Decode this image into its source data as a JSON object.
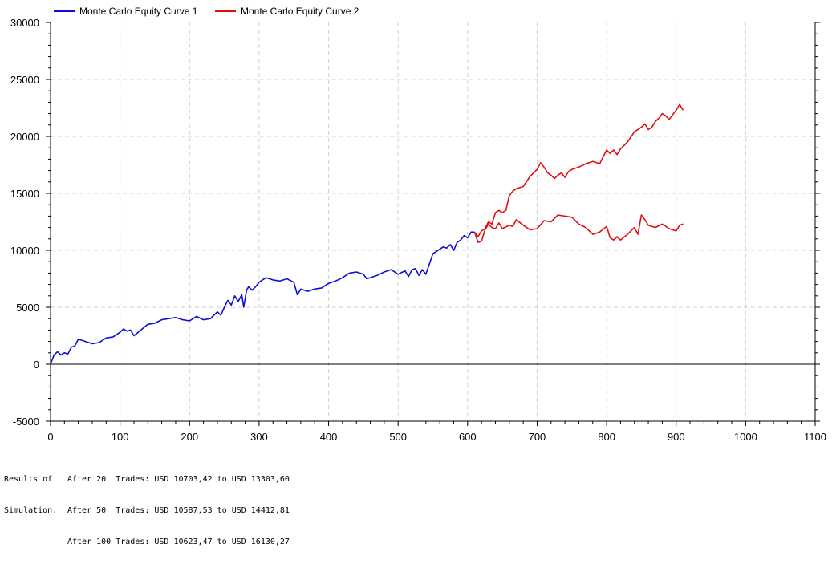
{
  "chart_data": {
    "type": "line",
    "xlim": [
      0,
      1100
    ],
    "ylim": [
      -5000,
      30000
    ],
    "x_ticks": [
      0,
      100,
      200,
      300,
      400,
      500,
      600,
      700,
      800,
      900,
      1000,
      1100
    ],
    "y_ticks": [
      -5000,
      0,
      5000,
      10000,
      15000,
      20000,
      25000,
      30000
    ],
    "grid": true,
    "legend_position": "top-left",
    "series": [
      {
        "name": "Monte Carlo Equity Curve 1",
        "color": "#1010d0",
        "x": [
          0,
          5,
          10,
          15,
          20,
          25,
          30,
          35,
          40,
          50,
          60,
          70,
          80,
          90,
          100,
          105,
          110,
          115,
          120,
          130,
          140,
          150,
          160,
          170,
          180,
          190,
          200,
          210,
          220,
          230,
          240,
          245,
          250,
          255,
          260,
          265,
          270,
          275,
          278,
          282,
          285,
          290,
          295,
          300,
          305,
          310,
          320,
          330,
          340,
          350,
          355,
          360,
          365,
          370,
          380,
          390,
          400,
          410,
          420,
          430,
          440,
          450,
          455,
          460,
          470,
          480,
          490,
          500,
          510,
          515,
          520,
          525,
          530,
          535,
          540,
          545,
          550,
          560,
          565,
          570,
          575,
          580,
          585,
          590,
          595,
          600,
          605,
          610
        ],
        "y": [
          0,
          800,
          1100,
          800,
          1000,
          900,
          1500,
          1600,
          2200,
          2000,
          1800,
          1900,
          2300,
          2400,
          2800,
          3100,
          2900,
          3000,
          2500,
          3000,
          3500,
          3600,
          3900,
          4000,
          4100,
          3900,
          3800,
          4200,
          3900,
          4000,
          4600,
          4300,
          5000,
          5600,
          5200,
          6000,
          5500,
          6100,
          5000,
          6500,
          6800,
          6500,
          6800,
          7200,
          7400,
          7600,
          7400,
          7300,
          7500,
          7200,
          6100,
          6600,
          6500,
          6400,
          6600,
          6700,
          7100,
          7300,
          7600,
          8000,
          8100,
          7900,
          7500,
          7600,
          7800,
          8100,
          8300,
          7900,
          8200,
          7700,
          8300,
          8400,
          7800,
          8300,
          7900,
          8800,
          9700,
          10100,
          10300,
          10200,
          10500,
          10000,
          10700,
          10900,
          11300,
          11100,
          11600,
          11600
        ]
      },
      {
        "name": "Monte Carlo Equity Curve 2",
        "color": "#e01010",
        "x": [
          610,
          615,
          620,
          625,
          630,
          635,
          640,
          645,
          650,
          655,
          660,
          665,
          670,
          680,
          690,
          700,
          705,
          710,
          715,
          720,
          725,
          730,
          735,
          740,
          745,
          750,
          760,
          770,
          780,
          790,
          800,
          805,
          810,
          815,
          820,
          830,
          840,
          850,
          855,
          860,
          865,
          870,
          875,
          880,
          885,
          890,
          895,
          900,
          905,
          910
        ],
        "y": [
          11600,
          11200,
          11700,
          11900,
          12500,
          12300,
          13300,
          13500,
          13300,
          13500,
          14800,
          15200,
          15400,
          15600,
          16500,
          17100,
          17700,
          17300,
          16800,
          16600,
          16300,
          16600,
          16800,
          16400,
          16900,
          17100,
          17300,
          17600,
          17800,
          17600,
          18800,
          18500,
          18800,
          18400,
          18900,
          19500,
          20400,
          20800,
          21100,
          20600,
          20800,
          21300,
          21600,
          22000,
          21800,
          21500,
          21900,
          22300,
          22800,
          22300
        ]
      },
      {
        "name": "",
        "color": "#e01010",
        "x": [
          610,
          615,
          620,
          625,
          630,
          635,
          640,
          645,
          650,
          660,
          665,
          670,
          680,
          690,
          700,
          710,
          720,
          730,
          740,
          750,
          760,
          770,
          780,
          790,
          800,
          805,
          810,
          815,
          820,
          830,
          840,
          845,
          850,
          855,
          860,
          870,
          880,
          890,
          900,
          905,
          910
        ],
        "y": [
          11600,
          10700,
          10800,
          11800,
          12300,
          12000,
          11900,
          12400,
          11900,
          12200,
          12100,
          12700,
          12200,
          11800,
          11900,
          12600,
          12500,
          13100,
          13000,
          12900,
          12300,
          12000,
          11400,
          11600,
          12100,
          11100,
          10900,
          11200,
          10900,
          11400,
          12000,
          11400,
          13100,
          12700,
          12200,
          12000,
          12300,
          11900,
          11700,
          12200,
          12300
        ]
      }
    ]
  },
  "results": {
    "label_line1": "Results of",
    "label_line2": "Simulation:",
    "rows": [
      "After 20  Trades: USD 10703,42 to USD 13303,60",
      "After 50  Trades: USD 10587,53 to USD 14412,81",
      "After 100 Trades: USD 10623,47 to USD 16130,27"
    ]
  }
}
